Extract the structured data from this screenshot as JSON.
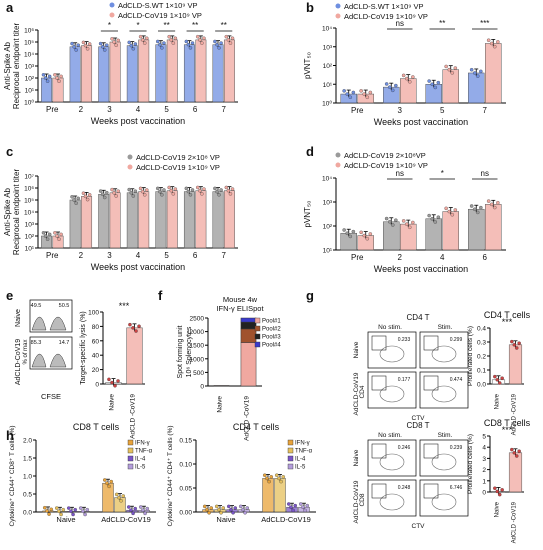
{
  "colors": {
    "blue": "#6f8fe0",
    "pink": "#f0a8a0",
    "red": "#c0392b",
    "gray": "#9a9a9a",
    "dark": "#222222",
    "orange": "#e8a33a",
    "purple": "#7a55c8"
  },
  "panel_letters": [
    "a",
    "b",
    "c",
    "d",
    "e",
    "f",
    "g",
    "h"
  ],
  "chart_data": [
    {
      "panel": "a",
      "type": "bar",
      "categories": [
        "Pre",
        "2",
        "3",
        "4",
        "5",
        "6",
        "7"
      ],
      "ylabel": "Anti-Spike Ab\nReciprocal endpoint titer",
      "xlabel": "Weeks post vaccination",
      "ylog": true,
      "ylim": [
        1,
        1000000
      ],
      "yticks": [
        "10⁰",
        "10¹",
        "10²",
        "10³",
        "10⁴",
        "10⁵",
        "10⁶"
      ],
      "series": [
        {
          "name": "AdCLD-S.WT 1×10⁹ VP",
          "color": "blue",
          "values": [
            100,
            40000,
            40000,
            50000,
            60000,
            60000,
            60000
          ]
        },
        {
          "name": "AdCLD-CoV19 1×10⁹ VP",
          "color": "pink",
          "values": [
            100,
            50000,
            100000,
            150000,
            150000,
            150000,
            150000
          ]
        }
      ],
      "significance": [
        "",
        "",
        "*",
        "*",
        "**",
        "**",
        "**"
      ]
    },
    {
      "panel": "b",
      "type": "bar",
      "categories": [
        "Pre",
        "3",
        "5",
        "7"
      ],
      "ylabel": "pVNT₅₀",
      "xlabel": "Weeks post vaccination",
      "ylog": true,
      "ylim": [
        1,
        10000
      ],
      "yticks": [
        "10⁰",
        "10¹",
        "10²",
        "10³",
        "10⁴"
      ],
      "series": [
        {
          "name": "AdCLD-S.WT 1×10⁹ VP",
          "color": "blue",
          "values": [
            3,
            7,
            10,
            40
          ]
        },
        {
          "name": "AdCLD-CoV19 1×10⁹ VP",
          "color": "pink",
          "values": [
            3,
            20,
            60,
            1500
          ]
        }
      ],
      "significance": [
        "",
        "ns",
        "**",
        "***"
      ]
    },
    {
      "panel": "c",
      "type": "bar",
      "categories": [
        "Pre",
        "2",
        "3",
        "4",
        "5",
        "6",
        "7"
      ],
      "ylabel": "Anti-Spike Ab\nReciprocal endpoint titer",
      "xlabel": "Weeks post vaccination",
      "ylog": true,
      "ylim": [
        10,
        10000000
      ],
      "yticks": [
        "10¹",
        "10²",
        "10³",
        "10⁴",
        "10⁵",
        "10⁶",
        "10⁷"
      ],
      "series": [
        {
          "name": "AdCLD-CoV19 2×10⁸ VP",
          "color": "gray",
          "values": [
            100,
            100000,
            300000,
            400000,
            500000,
            500000,
            500000
          ]
        },
        {
          "name": "AdCLD-CoV19 1×10⁹ VP",
          "color": "pink",
          "values": [
            100,
            200000,
            400000,
            500000,
            600000,
            600000,
            600000
          ]
        }
      ],
      "significance": [
        "",
        "",
        "",
        "",
        "",
        "",
        ""
      ]
    },
    {
      "panel": "d",
      "type": "bar",
      "categories": [
        "Pre",
        "2",
        "4",
        "6"
      ],
      "ylabel": "pVNT₅₀",
      "xlabel": "Weeks post vaccination",
      "ylog": true,
      "ylim": [
        10,
        10000
      ],
      "yticks": [
        "10¹",
        "10²",
        "10³",
        "10⁴"
      ],
      "series": [
        {
          "name": "AdCLD-CoV19 2×10⁸VP",
          "color": "gray",
          "values": [
            50,
            150,
            200,
            500
          ]
        },
        {
          "name": "AdCLD-CoV19 1×10⁹ VP",
          "color": "pink",
          "values": [
            40,
            120,
            400,
            800
          ]
        }
      ],
      "significance": [
        "",
        "ns",
        "*",
        "ns"
      ]
    },
    {
      "panel": "e",
      "type": "bar",
      "categories": [
        "Naive",
        "AdCLD -CoV19"
      ],
      "ylabel": "Target-specific lysis (%)",
      "ylim": [
        0,
        100
      ],
      "yticks": [
        "0",
        "20",
        "40",
        "60",
        "80",
        "100"
      ],
      "series": [
        {
          "name": "",
          "values": [
            2,
            78
          ]
        }
      ],
      "significance": "***"
    },
    {
      "panel": "f",
      "type": "bar",
      "stacked": true,
      "categories": [
        "Naive",
        "AdCLD -CoV19"
      ],
      "ylabel": "Spot forming unit\n10⁶ Splenocytes",
      "ylim": [
        0,
        2500
      ],
      "yticks": [
        "0",
        "500",
        "1000",
        "1500",
        "2000",
        "2500"
      ],
      "series": [
        {
          "name": "Pool#1",
          "color": "pink",
          "values": [
            20,
            1600
          ]
        },
        {
          "name": "Pool#2",
          "color": "#a0522d",
          "values": [
            0,
            500
          ]
        },
        {
          "name": "Pool#3",
          "color": "dark",
          "values": [
            0,
            250
          ]
        },
        {
          "name": "Pool#4",
          "color": "#3a3acc",
          "values": [
            0,
            150
          ]
        }
      ]
    },
    {
      "panel": "g1",
      "type": "bar",
      "categories": [
        "Naive",
        "AdCLD -CoV19"
      ],
      "ylabel": "Proliferated cells (%)",
      "ylim": [
        0,
        0.4
      ],
      "yticks": [
        "0.0",
        "0.1",
        "0.2",
        "0.3",
        "0.4"
      ],
      "series": [
        {
          "name": "CD4 T cells",
          "values": [
            0.03,
            0.28
          ]
        }
      ],
      "significance": "***"
    },
    {
      "panel": "g2",
      "type": "bar",
      "categories": [
        "Naive",
        "AdCLD -CoV19"
      ],
      "ylabel": "Proliferated cells (%)",
      "ylim": [
        0,
        5
      ],
      "yticks": [
        "0",
        "1",
        "2",
        "3",
        "4",
        "5"
      ],
      "series": [
        {
          "name": "CD8 T cells",
          "values": [
            0.05,
            3.5
          ]
        }
      ],
      "significance": "***"
    },
    {
      "panel": "h1",
      "type": "bar",
      "categories": [
        "Naive",
        "AdCLD-CoV19"
      ],
      "ylabel": "Cytokine⁺ CD44⁺ CD8⁺ T cells (%)",
      "ylim": [
        0,
        2.0
      ],
      "yticks": [
        "0.0",
        "0.5",
        "1.0",
        "1.5",
        "2.0"
      ],
      "series": [
        {
          "name": "IFN-γ",
          "color": "orange",
          "values": [
            0.03,
            0.8
          ]
        },
        {
          "name": "TNF-α",
          "color": "#e6c05c",
          "values": [
            0.02,
            0.4
          ]
        },
        {
          "name": "IL-4",
          "color": "purple",
          "values": [
            0.02,
            0.05
          ]
        },
        {
          "name": "IL-5",
          "color": "#b39ddb",
          "values": [
            0.02,
            0.05
          ]
        }
      ]
    },
    {
      "panel": "h2",
      "type": "bar",
      "categories": [
        "Naive",
        "AdCLD-CoV19"
      ],
      "ylabel": "Cytokine⁺ CD44⁺ CD4⁺ T cells (%)",
      "ylim": [
        0,
        0.15
      ],
      "yticks": [
        "0.00",
        "0.05",
        "0.10",
        "0.15"
      ],
      "series": [
        {
          "name": "IFN-γ",
          "color": "orange",
          "values": [
            0.005,
            0.07
          ]
        },
        {
          "name": "TNF-α",
          "color": "#e6c05c",
          "values": [
            0.005,
            0.07
          ]
        },
        {
          "name": "IL-4",
          "color": "purple",
          "values": [
            0.005,
            0.01
          ]
        },
        {
          "name": "IL-5",
          "color": "#b39ddb",
          "values": [
            0.005,
            0.01
          ]
        }
      ]
    }
  ],
  "texts": {
    "e_facs_naive_left": "49.5",
    "e_facs_naive_right": "50.5",
    "e_facs_vac_left": "85.3",
    "e_facs_vac_right": "14.7",
    "e_row1": "Naive",
    "e_row2": "AdCLD-CoV19",
    "e_xlabel": "CFSE",
    "e_ylabel": "% of max",
    "f_title1": "Mouse 4w",
    "f_title2": "IFN-γ ELISpot",
    "g_cd4_title": "CD4 T",
    "g_cd8_title": "CD8 T",
    "g_nostim": "No stim.",
    "g_stim": "Stim.",
    "g_naive": "Naive",
    "g_vac": "AdCLD-CoV19",
    "g_cd4_axis": "CD4",
    "g_cd8_axis": "CD8",
    "g_ctv": "CTV",
    "g_cd4_q": [
      "0.233",
      "0.299",
      "0.177",
      "0.474"
    ],
    "g_cd8_q": [
      "0.246",
      "0.239",
      "0.248",
      "6.746"
    ],
    "g_cd4_bar_title": "CD4 T cells",
    "g_cd8_bar_title": "CD8 T cells",
    "h_title1": "CD8 T cells",
    "h_title2": "CD4 T cells",
    "ns": "ns",
    "stars": "***"
  }
}
